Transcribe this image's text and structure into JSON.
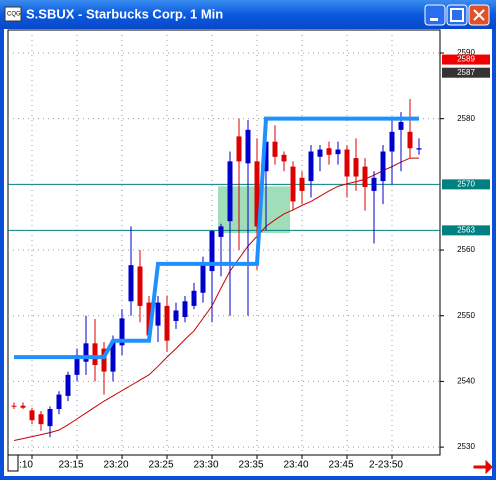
{
  "chart_data": {
    "type": "candlestick",
    "title": "S.SBUX - Starbucks Corp. 1 Min",
    "categories": [
      null,
      null,
      ":10",
      null,
      null,
      null,
      null,
      "23:15",
      null,
      null,
      null,
      null,
      "23:20",
      null,
      null,
      null,
      null,
      "23:25",
      null,
      null,
      null,
      null,
      "23:30",
      null,
      null,
      null,
      null,
      "23:35",
      null,
      null,
      null,
      null,
      "23:40",
      null,
      null,
      null,
      null,
      "23:45",
      null,
      null,
      null,
      null,
      "2-23:50",
      null,
      null,
      null
    ],
    "open": [
      2536.3,
      2536.3,
      2535.6,
      2535,
      2533.2,
      2535.8,
      2537.8,
      2541,
      2543,
      2545.8,
      2545,
      2541.5,
      2545.5,
      2552.2,
      2557.5,
      2552,
      2548.5,
      2551.5,
      2549.2,
      2549.8,
      2551.5,
      2553.5,
      2556.8,
      2562,
      2564.4,
      2577.3,
      2573.2,
      2573.5,
      2572,
      2576.5,
      2574.5,
      2572.7,
      2571,
      2570.5,
      2574.2,
      2575.5,
      2574.6,
      2575.3,
      2574,
      2572.7,
      2569,
      2570.5,
      2575,
      2578.3,
      2578,
      2575.3
    ],
    "high": [
      2536.8,
      2536.8,
      2536,
      2535.5,
      2536.2,
      2538.5,
      2541.5,
      2545,
      2550,
      2549.5,
      2546,
      2547,
      2551,
      2563.6,
      2560,
      2553,
      2553,
      2553,
      2552,
      2553,
      2555,
      2559,
      2563,
      2564,
      2575,
      2580,
      2579.8,
      2577,
      2578,
      2579,
      2575,
      2573.5,
      2572,
      2576,
      2576,
      2576.5,
      2576.5,
      2576,
      2577,
      2574,
      2572,
      2576,
      2580,
      2581,
      2583,
      2577
    ],
    "low": [
      2535.8,
      2535.8,
      2533.5,
      2532.5,
      2531.5,
      2535,
      2537,
      2540,
      2541,
      2540,
      2538,
      2540,
      2544,
      2550,
      2549,
      2546,
      2546,
      2544.5,
      2548,
      2549,
      2551,
      2552,
      2549,
      2556,
      2550,
      2560,
      2550,
      2557,
      2563,
      2573,
      2572,
      2566,
      2567,
      2568,
      2572,
      2573,
      2573,
      2568,
      2569,
      2566,
      2561,
      2567,
      2570,
      2572,
      2574,
      2574.5
    ],
    "close": [
      2536.2,
      2536,
      2534.1,
      2533.5,
      2535.8,
      2538,
      2541,
      2544,
      2545.8,
      2542.5,
      2541.5,
      2546,
      2549.6,
      2557.7,
      2551.5,
      2547,
      2552,
      2546.2,
      2550.8,
      2552.2,
      2553.8,
      2558,
      2562.9,
      2563.6,
      2573.5,
      2573.5,
      2578.3,
      2563.6,
      2576.5,
      2574.2,
      2573.5,
      2567.4,
      2569,
      2575,
      2575.3,
      2574.5,
      2575.3,
      2571.2,
      2571.2,
      2569.6,
      2571,
      2575,
      2578,
      2579.5,
      2575.5,
      2575.5
    ],
    "up_color": "#0000cc",
    "down_color": "#dd0000",
    "overlays": [
      {
        "type": "line",
        "color": "#cc0000",
        "values": [
          2531,
          2531.3,
          2531.6,
          2531.9,
          2532.2,
          2532.6,
          2533.4,
          2534.3,
          2535.2,
          2536.1,
          2537,
          2537.8,
          2538.6,
          2539.4,
          2540.2,
          2541,
          2542.3,
          2543.7,
          2545,
          2546.4,
          2547.7,
          2549.6,
          2551.5,
          2554.2,
          2556.8,
          2558.7,
          2560.6,
          2562.1,
          2563.6,
          2564.6,
          2565.5,
          2566.1,
          2566.8,
          2567.4,
          2568.2,
          2569,
          2569.7,
          2570.1,
          2570.4,
          2570.8,
          2571.4,
          2572.1,
          2572.7,
          2573.4,
          2574,
          2574
        ]
      },
      {
        "type": "step",
        "color": "#1e90ff",
        "values": [
          2543.7,
          2543.7,
          2543.7,
          2543.7,
          2543.7,
          2543.7,
          2543.7,
          2543.7,
          2543.7,
          2543.7,
          2543.7,
          2546.2,
          2546.2,
          2546.2,
          2546.2,
          2546.2,
          2557.9,
          2557.9,
          2557.9,
          2557.9,
          2557.9,
          2557.9,
          2557.9,
          2557.9,
          2557.9,
          2557.9,
          2557.9,
          2557.9,
          2580,
          2580,
          2580,
          2580,
          2580,
          2580,
          2580,
          2580,
          2580,
          2580,
          2580,
          2580,
          2580,
          2580,
          2580,
          2580,
          2580,
          2580
        ]
      }
    ],
    "zone": {
      "from": 23,
      "to": 31,
      "low": 2562.6,
      "high": 2569.7,
      "color": "#7fd3a0"
    },
    "levels": [
      {
        "value": 2570,
        "color": "#008080"
      },
      {
        "value": 2563,
        "color": "#008080"
      }
    ],
    "price_markers": [
      {
        "value": 2589,
        "color": "#ee0000"
      },
      {
        "value": 2587,
        "color": "#333333"
      }
    ],
    "ylim": [
      2528.8,
      2593.5
    ],
    "yticks": [
      2530,
      2540,
      2550,
      2560,
      2580,
      2590
    ],
    "grid": true
  }
}
